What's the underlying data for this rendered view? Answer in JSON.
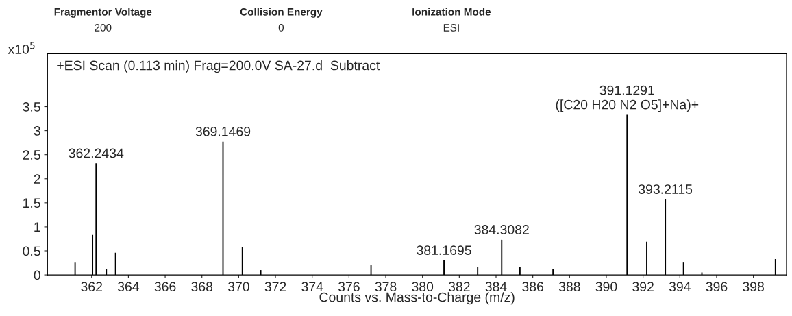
{
  "chart_data": {
    "type": "bar",
    "title": "+ESI Scan (0.113 min) Frag=200.0V SA-27.d  Subtract",
    "subtitle": [
      "Fragmentor Voltage\n200",
      "Collision Energy\n0",
      "Ionization Mode\nESI"
    ],
    "xlabel": "Counts vs. Mass-to-Charge (m/z)",
    "ylabel": "x10$^{5}$",
    "x": [
      361.1,
      362.05,
      362.2434,
      362.8,
      363.3,
      369.1469,
      370.2,
      371.2,
      377.2,
      381.1695,
      383.0,
      384.3082,
      385.3,
      387.1,
      391.1291,
      392.2,
      393.2115,
      394.2,
      395.2,
      399.2
    ],
    "values": [
      0.27,
      0.83,
      2.32,
      0.12,
      0.46,
      2.77,
      0.58,
      0.1,
      0.2,
      0.3,
      0.17,
      0.73,
      0.17,
      0.12,
      3.33,
      0.69,
      1.57,
      0.27,
      0.05,
      0.33
    ],
    "color": "#000000",
    "annotations": [
      {
        "text": "362.2434",
        "x": 362.2434,
        "y": 2.32
      },
      {
        "text": "369.1469",
        "x": 369.1469,
        "y": 2.77
      },
      {
        "text": "381.1695",
        "x": 381.1695,
        "y": 0.3
      },
      {
        "text": "384.3082",
        "x": 384.3082,
        "y": 0.73
      },
      {
        "text": "391.1291\n([C20 H20 N2 O5]+Na)+",
        "x": 391.1291,
        "y": 3.33
      },
      {
        "text": "393.2115",
        "x": 393.2115,
        "y": 1.57
      }
    ],
    "xlim": [
      359.6,
      399.8
    ],
    "ylim": [
      0,
      4.6
    ],
    "xticks": [
      362,
      364,
      366,
      368,
      370,
      372,
      374,
      376,
      378,
      380,
      382,
      384,
      386,
      388,
      390,
      392,
      394,
      396,
      398
    ],
    "yticks": [
      0,
      0.5,
      1,
      1.5,
      2,
      2.5,
      3,
      3.5
    ],
    "grid": false
  }
}
